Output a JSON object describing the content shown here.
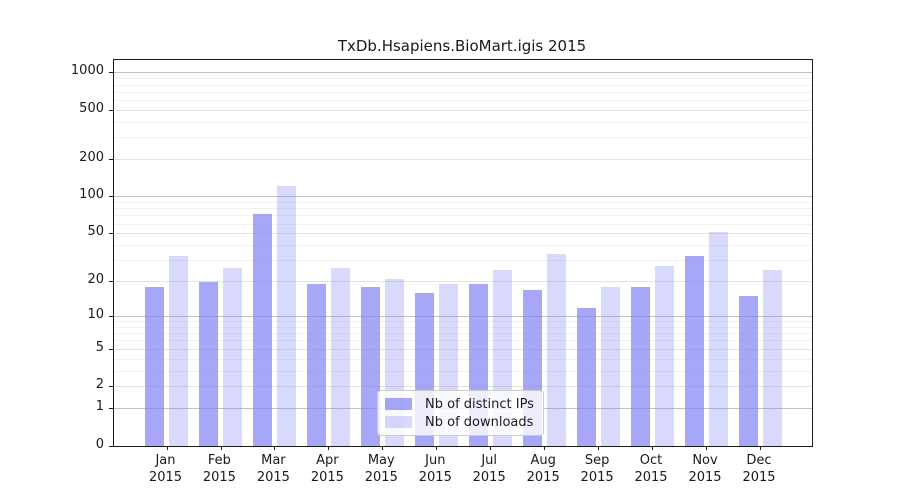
{
  "chart_data": {
    "type": "bar",
    "title": "TxDb.Hsapiens.BioMart.igis 2015",
    "categories": [
      {
        "month": "Jan",
        "year": "2015"
      },
      {
        "month": "Feb",
        "year": "2015"
      },
      {
        "month": "Mar",
        "year": "2015"
      },
      {
        "month": "Apr",
        "year": "2015"
      },
      {
        "month": "May",
        "year": "2015"
      },
      {
        "month": "Jun",
        "year": "2015"
      },
      {
        "month": "Jul",
        "year": "2015"
      },
      {
        "month": "Aug",
        "year": "2015"
      },
      {
        "month": "Sep",
        "year": "2015"
      },
      {
        "month": "Oct",
        "year": "2015"
      },
      {
        "month": "Nov",
        "year": "2015"
      },
      {
        "month": "Dec",
        "year": "2015"
      }
    ],
    "series": [
      {
        "name": "Nb of distinct IPs",
        "color": "rgba(130,130,245,0.70)",
        "values": [
          18,
          20,
          72,
          19,
          18,
          16,
          19,
          17,
          12,
          18,
          33,
          15
        ]
      },
      {
        "name": "Nb of downloads",
        "color": "rgba(130,130,245,0.30)",
        "values": [
          33,
          26,
          122,
          26,
          21,
          19,
          25,
          34,
          18,
          27,
          52,
          25
        ]
      }
    ],
    "xlabel": "",
    "ylabel": "",
    "yscale": "log1p",
    "yticks": [
      0,
      1,
      2,
      5,
      10,
      20,
      50,
      100,
      200,
      500,
      1000
    ],
    "ylim": [
      0,
      1260
    ],
    "grid": true,
    "legend_position": "lower center"
  }
}
